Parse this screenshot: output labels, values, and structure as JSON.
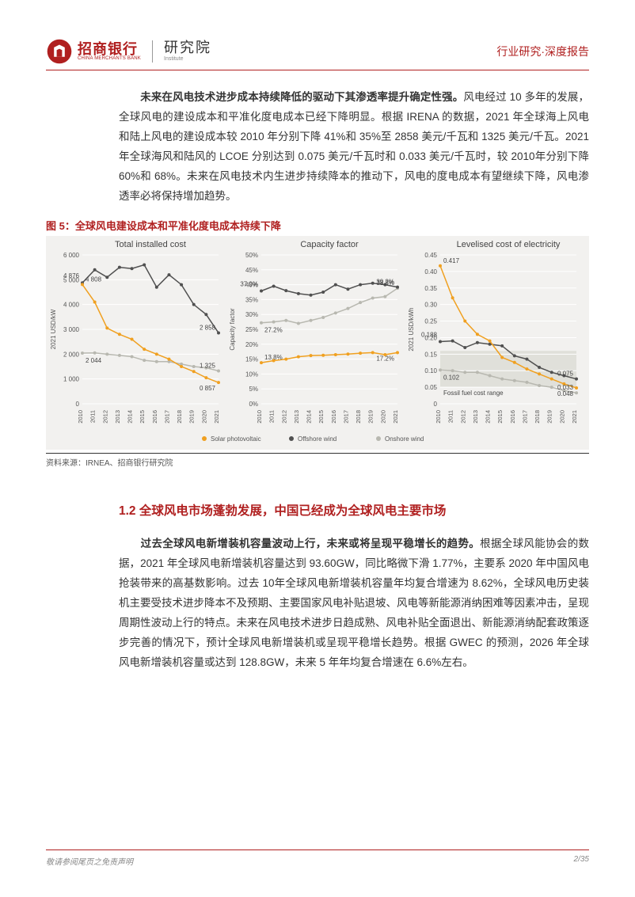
{
  "header": {
    "logo_cn": "招商银行",
    "logo_en": "CHINA MERCHANTS BANK",
    "institute_cn": "研究院",
    "institute_en": "Institute",
    "category": "行业研究·深度报告"
  },
  "paragraph1": {
    "lead": "未来在风电技术进步成本持续降低的驱动下其渗透率提升确定性强。",
    "rest": "风电经过 10 多年的发展，全球风电的建设成本和平准化度电成本已经下降明显。根据 IRENA 的数据，2021 年全球海上风电和陆上风电的建设成本较 2010 年分别下降 41%和 35%至 2858 美元/千瓦和 1325 美元/千瓦。2021 年全球海风和陆风的 LCOE 分别达到 0.075 美元/千瓦时和 0.033 美元/千瓦时，较 2010年分别下降 60%和 68%。未来在风电技术内生进步持续降本的推动下，风电的度电成本有望继续下降，风电渗透率必将保持增加趋势。"
  },
  "figure": {
    "title": "图 5：全球风电建设成本和平准化度电成本持续下降",
    "title_color": "#b02020",
    "source": "资料来源：IRNEA、招商银行研究院",
    "background": "#f2f1ef",
    "years": [
      "2010",
      "2011",
      "2012",
      "2013",
      "2014",
      "2015",
      "2016",
      "2017",
      "2018",
      "2019",
      "2020",
      "2021"
    ],
    "legend": {
      "solar": {
        "label": "Solar photovoltaic",
        "color": "#f0a020"
      },
      "offshore": {
        "label": "Offshore wind",
        "color": "#505050"
      },
      "onshore": {
        "label": "Onshore wind",
        "color": "#b8b8b0"
      }
    },
    "subplot1": {
      "title": "Total installed cost",
      "ylabel": "2021 USD/kW",
      "ylim": [
        0,
        6000
      ],
      "ytick_step": 1000,
      "yticks": [
        "0",
        "1 000",
        "2 000",
        "3 000",
        "4 000",
        "5 000",
        "6 000"
      ],
      "solar": [
        4808,
        4100,
        3050,
        2800,
        2600,
        2200,
        2000,
        1800,
        1500,
        1300,
        1050,
        857
      ],
      "offshore": [
        4876,
        5400,
        5100,
        5500,
        5450,
        5600,
        4700,
        5200,
        4800,
        4000,
        3600,
        2858
      ],
      "onshore": [
        2044,
        2050,
        2000,
        1950,
        1900,
        1750,
        1700,
        1700,
        1600,
        1500,
        1450,
        1325
      ],
      "labels": {
        "solar_start": "4 808",
        "offshore_start": "4 876",
        "onshore_start": "2 044",
        "solar_end": "0 857",
        "offshore_end": "2 858",
        "onshore_end": "1 325"
      }
    },
    "subplot2": {
      "title": "Capacity factor",
      "ylabel": "Capacity factor",
      "ylim": [
        0,
        50
      ],
      "ytick_step": 5,
      "yticks": [
        "0%",
        "5%",
        "10%",
        "15%",
        "20%",
        "25%",
        "30%",
        "35%",
        "40%",
        "45%",
        "50%"
      ],
      "solar": [
        13.8,
        14.5,
        15.0,
        15.8,
        16.2,
        16.3,
        16.5,
        16.7,
        17.0,
        17.2,
        16.5,
        17.2
      ],
      "offshore": [
        37.9,
        39.5,
        38.0,
        37.0,
        36.5,
        37.5,
        40.0,
        38.5,
        40.0,
        40.5,
        40.0,
        39.2
      ],
      "onshore": [
        27.2,
        27.5,
        28.0,
        27.0,
        28.0,
        29.0,
        30.5,
        32.0,
        34.0,
        35.5,
        36.0,
        38.8
      ],
      "labels": {
        "solar_start": "13.8%",
        "offshore_start": "37.9%",
        "onshore_start": "27.2%",
        "solar_end": "17.2%",
        "offshore_end": "39.2%",
        "onshore_end": "38.8%"
      }
    },
    "subplot3": {
      "title": "Levelised cost of electricity",
      "ylabel": "2021 USD/kWh",
      "ylim": [
        0,
        0.45
      ],
      "ytick_step": 0.05,
      "yticks": [
        "0",
        "0.05",
        "0.10",
        "0.15",
        "0.20",
        "0.25",
        "0.30",
        "0.35",
        "0.40",
        "0.45"
      ],
      "solar": [
        0.417,
        0.32,
        0.25,
        0.21,
        0.19,
        0.14,
        0.125,
        0.105,
        0.09,
        0.075,
        0.06,
        0.048
      ],
      "offshore": [
        0.188,
        0.19,
        0.17,
        0.185,
        0.18,
        0.175,
        0.145,
        0.135,
        0.11,
        0.095,
        0.085,
        0.075
      ],
      "onshore": [
        0.102,
        0.1,
        0.095,
        0.095,
        0.085,
        0.075,
        0.07,
        0.065,
        0.055,
        0.05,
        0.04,
        0.033
      ],
      "fossil_band": {
        "low": 0.05,
        "high": 0.16,
        "label": "Fossil fuel cost range"
      },
      "labels": {
        "solar_start": "0.417",
        "offshore_start": "0.188",
        "onshore_start": "0.102",
        "solar_end": "0.048",
        "offshore_end": "0.075",
        "onshore_end": "0.033"
      }
    }
  },
  "section_title": {
    "text": "1.2 全球风电市场蓬勃发展，中国已经成为全球风电主要市场",
    "color": "#b02020"
  },
  "paragraph2": {
    "lead": "过去全球风电新增装机容量波动上行，未来或将呈现平稳增长的趋势。",
    "rest": "根据全球风能协会的数据，2021 年全球风电新增装机容量达到 93.60GW，同比略微下滑 1.77%，主要系 2020 年中国风电抢装带来的高基数影响。过去 10年全球风电新增装机容量年均复合增速为 8.62%，全球风电历史装机主要受技术进步降本不及预期、主要国家风电补贴退坡、风电等新能源消纳困难等因素冲击，呈现周期性波动上行的特点。未来在风电技术进步日趋成熟、风电补贴全面退出、新能源消纳配套政策逐步完善的情况下，预计全球风电新增装机或呈现平稳增长趋势。根据 GWEC 的预测，2026 年全球风电新增装机容量或达到 128.8GW，未来 5 年年均复合增速在 6.6%左右。"
  },
  "footer": {
    "left": "敬请参阅尾页之免责声明",
    "right": "2/35"
  }
}
